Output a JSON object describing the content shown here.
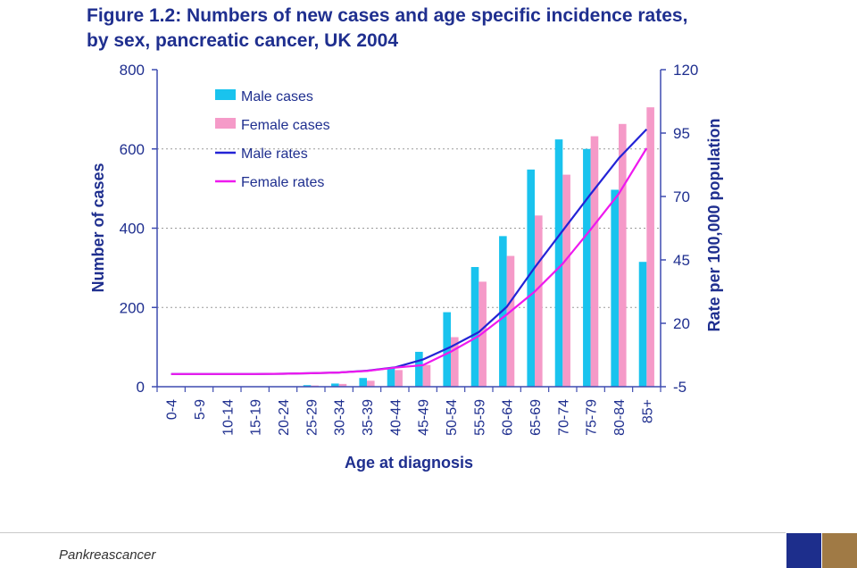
{
  "chart_data": {
    "type": "bar",
    "title_line1": "Figure 1.2: Numbers of new cases and age specific incidence rates,",
    "title_line2": "by sex,  pancreatic cancer, UK 2004",
    "xlabel": "Age at diagnosis",
    "ylabel_left": "Number of cases",
    "ylabel_right": "Rate per 100,000 population",
    "categories": [
      "0-4",
      "5-9",
      "10-14",
      "15-19",
      "20-24",
      "25-29",
      "30-34",
      "35-39",
      "40-44",
      "45-49",
      "50-54",
      "55-59",
      "60-64",
      "65-69",
      "70-74",
      "75-79",
      "80-84",
      "85+"
    ],
    "ylim_left": [
      0,
      800
    ],
    "yticks_left": [
      0,
      200,
      400,
      600,
      800
    ],
    "ylim_right": [
      -5,
      120
    ],
    "yticks_right": [
      -5,
      20,
      45,
      70,
      95,
      120
    ],
    "grid": "dotted horizontal",
    "legend_position": "top-left",
    "series": [
      {
        "name": "Male cases",
        "kind": "bar",
        "axis": "left",
        "color": "#19c3ee",
        "values": [
          0,
          0,
          0,
          0,
          1,
          4,
          8,
          22,
          47,
          88,
          188,
          302,
          380,
          548,
          624,
          600,
          497,
          315
        ]
      },
      {
        "name": "Female cases",
        "kind": "bar",
        "axis": "left",
        "color": "#f59ac8",
        "values": [
          0,
          0,
          0,
          0,
          1,
          3,
          7,
          15,
          42,
          55,
          125,
          265,
          330,
          432,
          535,
          632,
          663,
          705
        ]
      },
      {
        "name": "Male rates",
        "kind": "line",
        "axis": "right",
        "color": "#2323d6",
        "values": [
          0,
          0,
          0,
          0,
          0.1,
          0.3,
          0.6,
          1.3,
          2.6,
          5.7,
          10.7,
          16.5,
          26.5,
          42,
          56.5,
          71,
          85,
          96.5
        ]
      },
      {
        "name": "Female rates",
        "kind": "line",
        "axis": "right",
        "color": "#ee19ee",
        "values": [
          0,
          0,
          0,
          0,
          0.1,
          0.3,
          0.6,
          1.2,
          2.5,
          3.5,
          8.8,
          15.0,
          23.5,
          32.5,
          43.5,
          57,
          71,
          89
        ]
      }
    ]
  },
  "footer": {
    "text": "Pankreascancer"
  }
}
